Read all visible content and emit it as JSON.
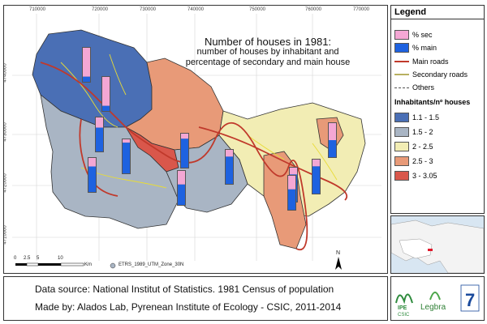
{
  "map": {
    "title": "Number of houses in 1981:",
    "subtitle_1": "number of houses by inhabitant and",
    "subtitle_2": "percentage of secondary and main house",
    "x_ticks": [
      "710000",
      "720000",
      "730000",
      "740000",
      "750000",
      "760000",
      "770000"
    ],
    "y_ticks": [
      "4740000",
      "4730000",
      "4720000",
      "4710000"
    ],
    "scale_ticks": [
      "0",
      "2.5",
      "5",
      "10"
    ],
    "scale_unit": "Km",
    "north_label": "N",
    "crs_label": "ETRS_1989_UTM_Zone_30N",
    "bars": [
      {
        "sec": 0.85,
        "main": 0.15
      },
      {
        "sec": 0.85,
        "main": 0.15
      },
      {
        "sec": 0.3,
        "main": 0.7
      },
      {
        "sec": 0.1,
        "main": 0.9
      },
      {
        "sec": 0.25,
        "main": 0.75
      },
      {
        "sec": 0.15,
        "main": 0.85
      },
      {
        "sec": 0.2,
        "main": 0.8
      },
      {
        "sec": 0.4,
        "main": 0.6
      },
      {
        "sec": 0.2,
        "main": 0.8
      },
      {
        "sec": 0.2,
        "main": 0.8
      },
      {
        "sec": 0.5,
        "main": 0.5
      },
      {
        "sec": 0.4,
        "main": 0.6
      }
    ]
  },
  "legend": {
    "title": "Legend",
    "sec_label": "% sec",
    "main_label": "% main",
    "main_roads_label": "Main roads",
    "secondary_roads_label": "Secondary roads",
    "others_label": "Others",
    "classes_title": "Inhabitants/nº houses",
    "classes": [
      {
        "label": "1.1 - 1.5",
        "color": "#4a6fb5"
      },
      {
        "label": "1.5 - 2",
        "color": "#a9b5c4"
      },
      {
        "label": "2 - 2.5",
        "color": "#f2edb4"
      },
      {
        "label": "2.5 - 3",
        "color": "#e89a78"
      },
      {
        "label": "3 - 3.05",
        "color": "#d9574b"
      }
    ],
    "sec_color": "#f4a7d4",
    "main_color": "#1e62e0",
    "main_road_color": "#c0392b",
    "secondary_road_color": "#b8b061"
  },
  "footer": {
    "line1": "Data source: National Institut of Statistics. 1981 Census of population",
    "line2": "Made by: Alados Lab, Pyrenean Institute of Ecology - CSIC, 2011-2014"
  },
  "logos": {
    "ipe": "IPE",
    "csic": "CSIC",
    "legadra": "Legbra",
    "seven": "7"
  }
}
